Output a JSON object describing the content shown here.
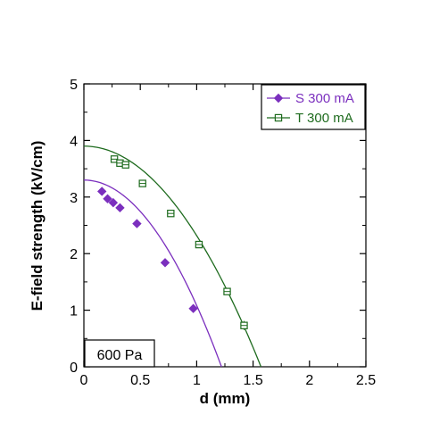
{
  "chart_data": {
    "type": "scatter",
    "title": "",
    "xlabel": "d (mm)",
    "ylabel": "E-field strength (kV/cm)",
    "xlim": [
      0,
      2.5
    ],
    "ylim": [
      0,
      5
    ],
    "xticks": [
      "0",
      "0.5",
      "1",
      "1.5",
      "2",
      "2.5"
    ],
    "yticks": [
      "0",
      "1",
      "2",
      "3",
      "4",
      "5"
    ],
    "grid": false,
    "legend_position": "top-right",
    "annotation": "600 Pa",
    "series": [
      {
        "name": "S 300 mA",
        "color": "#7b2fbe",
        "marker": "filled-diamond",
        "x": [
          0.16,
          0.21,
          0.26,
          0.32,
          0.47,
          0.72,
          0.97
        ],
        "y": [
          3.1,
          2.97,
          2.9,
          2.81,
          2.53,
          1.84,
          1.03
        ],
        "err": [
          0.05,
          0.05,
          0.05,
          0.05,
          0.05,
          0.07,
          0.07
        ],
        "fit": {
          "x0": 0,
          "y0": 3.3,
          "x_end": 1.22
        }
      },
      {
        "name": "T 300 mA",
        "color": "#1e6b1e",
        "marker": "open-square-cross",
        "x": [
          0.27,
          0.32,
          0.37,
          0.52,
          0.77,
          1.02,
          1.27,
          1.42
        ],
        "y": [
          3.67,
          3.6,
          3.57,
          3.24,
          2.71,
          2.16,
          1.33,
          0.73
        ],
        "err": [
          0.05,
          0.05,
          0.05,
          0.05,
          0.05,
          0.06,
          0.06,
          0.08
        ],
        "fit": {
          "x0": 0,
          "y0": 3.9,
          "x_end": 1.57
        }
      }
    ]
  }
}
